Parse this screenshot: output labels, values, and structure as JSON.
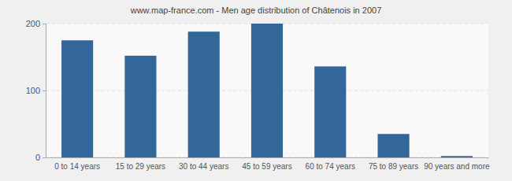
{
  "chart_data": {
    "type": "bar",
    "title": "www.map-france.com - Men age distribution of Châtenois in 2007",
    "categories": [
      "0 to 14 years",
      "15 to 29 years",
      "30 to 44 years",
      "45 to 59 years",
      "60 to 74 years",
      "75 to 89 years",
      "90 years and more"
    ],
    "values": [
      175,
      152,
      188,
      200,
      136,
      35,
      2
    ],
    "color": "#336699",
    "ylim": [
      0,
      200
    ],
    "yticks": [
      0,
      100,
      200
    ],
    "grid": true
  }
}
